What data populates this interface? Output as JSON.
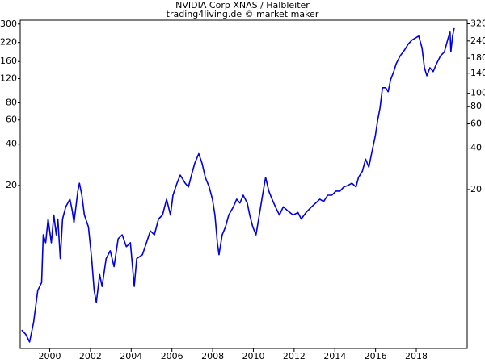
{
  "chart_data": {
    "type": "line",
    "title": "NVIDIA Corp XNAS / Halbleiter",
    "subtitle": "trading4living.de © market maker",
    "log_scale": true,
    "x": [
      1998.62,
      1998.82,
      1999.01,
      1999.21,
      1999.41,
      1999.6,
      1999.68,
      1999.8,
      1999.92,
      2000.08,
      2000.2,
      2000.32,
      2000.4,
      2000.52,
      2000.63,
      2000.79,
      2000.99,
      2001.11,
      2001.19,
      2001.38,
      2001.46,
      2001.58,
      2001.7,
      2001.9,
      2002.06,
      2002.18,
      2002.29,
      2002.45,
      2002.57,
      2002.77,
      2002.97,
      2003.16,
      2003.36,
      2003.56,
      2003.76,
      2003.96,
      2004.15,
      2004.27,
      2004.55,
      2004.75,
      2004.94,
      2005.14,
      2005.34,
      2005.54,
      2005.74,
      2005.93,
      2006.05,
      2006.25,
      2006.41,
      2006.65,
      2006.81,
      2006.96,
      2007.12,
      2007.32,
      2007.48,
      2007.64,
      2007.83,
      2007.99,
      2008.11,
      2008.23,
      2008.31,
      2008.47,
      2008.63,
      2008.79,
      2009.02,
      2009.18,
      2009.34,
      2009.5,
      2009.7,
      2009.82,
      2009.97,
      2010.13,
      2010.29,
      2010.45,
      2010.6,
      2010.76,
      2010.92,
      2011.08,
      2011.28,
      2011.47,
      2011.71,
      2011.95,
      2012.19,
      2012.35,
      2012.58,
      2012.86,
      2013.06,
      2013.26,
      2013.45,
      2013.65,
      2013.85,
      2014.05,
      2014.25,
      2014.44,
      2014.64,
      2014.84,
      2015.04,
      2015.16,
      2015.35,
      2015.51,
      2015.67,
      2015.83,
      2015.99,
      2016.11,
      2016.22,
      2016.34,
      2016.5,
      2016.62,
      2016.74,
      2016.89,
      2017.01,
      2017.21,
      2017.41,
      2017.61,
      2017.8,
      2018.0,
      2018.12,
      2018.28,
      2018.4,
      2018.52,
      2018.67,
      2018.83,
      2018.99,
      2019.19,
      2019.38,
      2019.54,
      2019.66,
      2019.7,
      2019.78,
      2019.86
    ],
    "series": [
      {
        "name": "NVIDIA Corp",
        "color": "#0000e0",
        "values": [
          1.77,
          1.65,
          1.45,
          2.02,
          3.44,
          3.93,
          8.75,
          7.66,
          11.4,
          7.66,
          12.2,
          8.75,
          11.4,
          5.87,
          11.4,
          14.0,
          15.9,
          13.0,
          10.7,
          18.2,
          20.8,
          17.0,
          12.2,
          10.0,
          5.87,
          3.44,
          2.82,
          4.49,
          3.68,
          5.87,
          6.7,
          5.13,
          8.19,
          8.75,
          7.17,
          7.66,
          3.68,
          5.87,
          6.27,
          7.66,
          9.35,
          8.75,
          11.4,
          12.2,
          15.9,
          12.2,
          17.0,
          20.8,
          23.8,
          20.8,
          19.5,
          23.8,
          29.0,
          34.1,
          29.0,
          22.9,
          19.5,
          15.9,
          12.2,
          7.66,
          6.27,
          8.75,
          10.0,
          12.2,
          14.0,
          15.9,
          14.9,
          17.0,
          14.9,
          12.2,
          10.0,
          8.75,
          12.2,
          17.0,
          22.9,
          18.2,
          15.9,
          14.0,
          12.2,
          14.0,
          13.0,
          12.2,
          12.7,
          11.4,
          12.7,
          14.0,
          14.9,
          15.9,
          15.3,
          17.0,
          17.0,
          18.2,
          18.2,
          19.5,
          20.0,
          20.8,
          19.5,
          22.9,
          25.4,
          31.1,
          27.2,
          35.5,
          46.3,
          60.5,
          73.8,
          103,
          103,
          96.4,
          118,
          135,
          154,
          176,
          193,
          215,
          230,
          239,
          245,
          201,
          144,
          126,
          144,
          135,
          154,
          176,
          188,
          230,
          262,
          188,
          245,
          280
        ]
      }
    ],
    "xlim": [
      1998.55,
      2020.5
    ],
    "xticks": [
      2000,
      2002,
      2004,
      2006,
      2008,
      2010,
      2012,
      2014,
      2016,
      2018
    ],
    "ylim": [
      1.3,
      320
    ],
    "yticks": [
      20,
      40,
      60,
      80,
      120,
      160,
      220,
      300
    ],
    "y2lim": [
      1.4,
      340
    ],
    "y2ticks": [
      20,
      40,
      60,
      80,
      100,
      140,
      180,
      240,
      320
    ]
  }
}
